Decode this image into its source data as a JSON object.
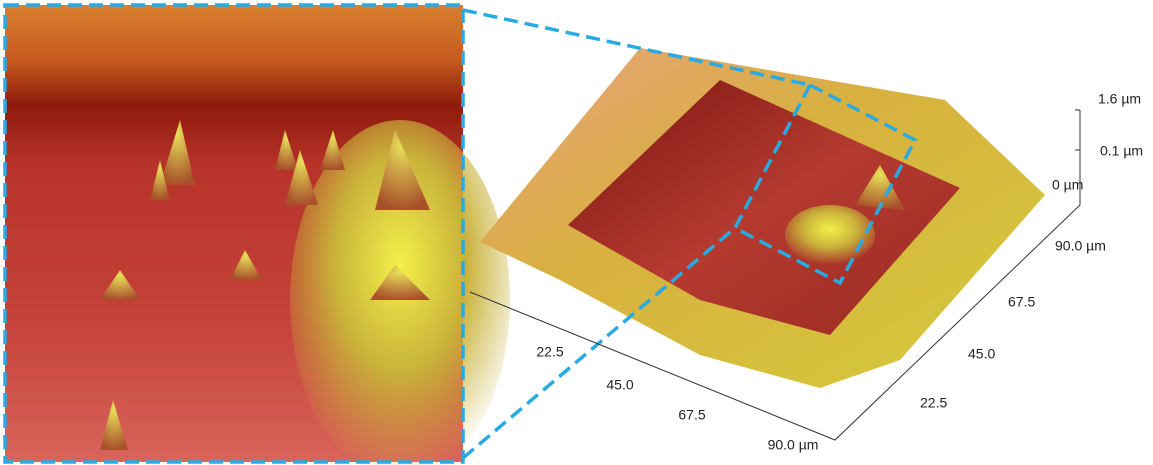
{
  "z_axis": {
    "labels": [
      "1.6 µm",
      "0.1 µm",
      "0 µm"
    ]
  },
  "x_axis": {
    "labels": [
      "22.5",
      "45.0",
      "67.5",
      "90.0 µm"
    ]
  },
  "y_axis": {
    "labels": [
      "22.5",
      "45.0",
      "67.5",
      "90.0 µm"
    ]
  }
}
